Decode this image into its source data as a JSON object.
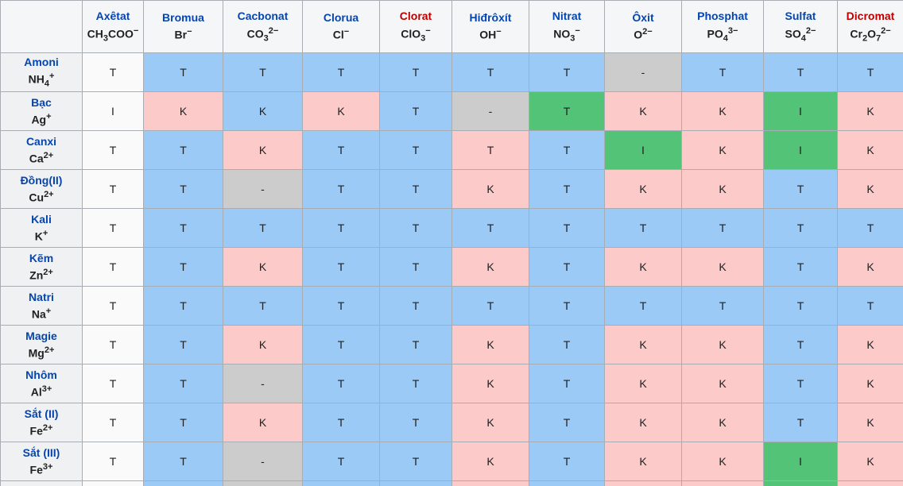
{
  "palette": {
    "blue": "#9bcaf6",
    "pink": "#fdcaca",
    "green": "#52c377",
    "gray": "#cccccc",
    "white": "#fafafa",
    "header_bg": "#f5f6f7",
    "row_header_bg": "#f0f1f2",
    "border": "#a8adb3",
    "link_blue": "#0645ad",
    "link_red": "#ba0000",
    "cell_text": "#202122"
  },
  "chart_data": {
    "type": "table",
    "title": "",
    "columns": [
      {
        "label": "Axêtat",
        "formula": "CH_3_COO^−^",
        "label_color": "blue"
      },
      {
        "label": "Bromua",
        "formula": "Br^−^",
        "label_color": "blue"
      },
      {
        "label": "Cacbonat",
        "formula": "CO_3_^2−^",
        "label_color": "blue"
      },
      {
        "label": "Clorua",
        "formula": "Cl^−^",
        "label_color": "blue"
      },
      {
        "label": "Clorat",
        "formula": "ClO_3_^−^",
        "label_color": "red"
      },
      {
        "label": "Hiđrôxít",
        "formula": "OH^−^",
        "label_color": "blue"
      },
      {
        "label": "Nitrat",
        "formula": "NO_3_^−^",
        "label_color": "blue"
      },
      {
        "label": "Ôxit",
        "formula": "O^2−^",
        "label_color": "blue"
      },
      {
        "label": "Phosphat",
        "formula": "PO_4_^3−^",
        "label_color": "blue"
      },
      {
        "label": "Sulfat",
        "formula": "SO_4_^2−^",
        "label_color": "blue"
      },
      {
        "label": "Dicromat",
        "formula": "Cr_2_O_7_^2−^",
        "label_color": "red"
      }
    ],
    "rows": [
      {
        "label": "Amoni",
        "formula": "NH_4_^+^",
        "cells": [
          [
            "T",
            "white"
          ],
          [
            "T",
            "blue"
          ],
          [
            "T",
            "blue"
          ],
          [
            "T",
            "blue"
          ],
          [
            "T",
            "blue"
          ],
          [
            "T",
            "blue"
          ],
          [
            "T",
            "blue"
          ],
          [
            "-",
            "gray"
          ],
          [
            "T",
            "blue"
          ],
          [
            "T",
            "blue"
          ],
          [
            "T",
            "blue"
          ]
        ]
      },
      {
        "label": "Bạc",
        "formula": "Ag^+^",
        "cells": [
          [
            "I",
            "white"
          ],
          [
            "K",
            "pink"
          ],
          [
            "K",
            "blue"
          ],
          [
            "K",
            "pink"
          ],
          [
            "T",
            "blue"
          ],
          [
            "-",
            "gray"
          ],
          [
            "T",
            "green"
          ],
          [
            "K",
            "pink"
          ],
          [
            "K",
            "pink"
          ],
          [
            "I",
            "green"
          ],
          [
            "K",
            "pink"
          ]
        ]
      },
      {
        "label": "Canxi",
        "formula": "Ca^2+^",
        "cells": [
          [
            "T",
            "white"
          ],
          [
            "T",
            "blue"
          ],
          [
            "K",
            "pink"
          ],
          [
            "T",
            "blue"
          ],
          [
            "T",
            "blue"
          ],
          [
            "T",
            "pink"
          ],
          [
            "T",
            "blue"
          ],
          [
            "I",
            "green"
          ],
          [
            "K",
            "pink"
          ],
          [
            "I",
            "green"
          ],
          [
            "K",
            "pink"
          ]
        ]
      },
      {
        "label": "Đồng(II)",
        "formula": "Cu^2+^",
        "cells": [
          [
            "T",
            "white"
          ],
          [
            "T",
            "blue"
          ],
          [
            "-",
            "gray"
          ],
          [
            "T",
            "blue"
          ],
          [
            "T",
            "blue"
          ],
          [
            "K",
            "pink"
          ],
          [
            "T",
            "blue"
          ],
          [
            "K",
            "pink"
          ],
          [
            "K",
            "pink"
          ],
          [
            "T",
            "blue"
          ],
          [
            "K",
            "pink"
          ]
        ]
      },
      {
        "label": "Kali",
        "formula": "K^+^",
        "cells": [
          [
            "T",
            "white"
          ],
          [
            "T",
            "blue"
          ],
          [
            "T",
            "blue"
          ],
          [
            "T",
            "blue"
          ],
          [
            "T",
            "blue"
          ],
          [
            "T",
            "blue"
          ],
          [
            "T",
            "blue"
          ],
          [
            "T",
            "blue"
          ],
          [
            "T",
            "blue"
          ],
          [
            "T",
            "blue"
          ],
          [
            "T",
            "blue"
          ]
        ]
      },
      {
        "label": "Kẽm",
        "formula": "Zn^2+^",
        "cells": [
          [
            "T",
            "white"
          ],
          [
            "T",
            "blue"
          ],
          [
            "K",
            "pink"
          ],
          [
            "T",
            "blue"
          ],
          [
            "T",
            "blue"
          ],
          [
            "K",
            "pink"
          ],
          [
            "T",
            "blue"
          ],
          [
            "K",
            "pink"
          ],
          [
            "K",
            "pink"
          ],
          [
            "T",
            "blue"
          ],
          [
            "K",
            "pink"
          ]
        ]
      },
      {
        "label": "Natri",
        "formula": "Na^+^",
        "cells": [
          [
            "T",
            "white"
          ],
          [
            "T",
            "blue"
          ],
          [
            "T",
            "blue"
          ],
          [
            "T",
            "blue"
          ],
          [
            "T",
            "blue"
          ],
          [
            "T",
            "blue"
          ],
          [
            "T",
            "blue"
          ],
          [
            "T",
            "blue"
          ],
          [
            "T",
            "blue"
          ],
          [
            "T",
            "blue"
          ],
          [
            "T",
            "blue"
          ]
        ]
      },
      {
        "label": "Magie",
        "formula": "Mg^2+^",
        "cells": [
          [
            "T",
            "white"
          ],
          [
            "T",
            "blue"
          ],
          [
            "K",
            "pink"
          ],
          [
            "T",
            "blue"
          ],
          [
            "T",
            "blue"
          ],
          [
            "K",
            "pink"
          ],
          [
            "T",
            "blue"
          ],
          [
            "K",
            "pink"
          ],
          [
            "K",
            "pink"
          ],
          [
            "T",
            "blue"
          ],
          [
            "K",
            "pink"
          ]
        ]
      },
      {
        "label": "Nhôm",
        "formula": "Al^3+^",
        "cells": [
          [
            "T",
            "white"
          ],
          [
            "T",
            "blue"
          ],
          [
            "-",
            "gray"
          ],
          [
            "T",
            "blue"
          ],
          [
            "T",
            "blue"
          ],
          [
            "K",
            "pink"
          ],
          [
            "T",
            "blue"
          ],
          [
            "K",
            "pink"
          ],
          [
            "K",
            "pink"
          ],
          [
            "T",
            "blue"
          ],
          [
            "K",
            "pink"
          ]
        ]
      },
      {
        "label": "Sắt (II)",
        "formula": "Fe^2+^",
        "cells": [
          [
            "T",
            "white"
          ],
          [
            "T",
            "blue"
          ],
          [
            "K",
            "pink"
          ],
          [
            "T",
            "blue"
          ],
          [
            "T",
            "blue"
          ],
          [
            "K",
            "pink"
          ],
          [
            "T",
            "blue"
          ],
          [
            "K",
            "pink"
          ],
          [
            "K",
            "pink"
          ],
          [
            "T",
            "blue"
          ],
          [
            "K",
            "pink"
          ]
        ]
      },
      {
        "label": "Sắt (III)",
        "formula": "Fe^3+^",
        "cells": [
          [
            "T",
            "white"
          ],
          [
            "T",
            "blue"
          ],
          [
            "-",
            "gray"
          ],
          [
            "T",
            "blue"
          ],
          [
            "T",
            "blue"
          ],
          [
            "K",
            "pink"
          ],
          [
            "T",
            "blue"
          ],
          [
            "K",
            "pink"
          ],
          [
            "K",
            "pink"
          ],
          [
            "I",
            "green"
          ],
          [
            "K",
            "pink"
          ]
        ]
      }
    ],
    "partial_next_row_bgs": [
      "white",
      "blue",
      "gray",
      "blue",
      "blue",
      "pink",
      "blue",
      "pink",
      "pink",
      "green",
      "pink"
    ],
    "cell_codes_seen": [
      "T",
      "K",
      "I",
      "-"
    ]
  }
}
